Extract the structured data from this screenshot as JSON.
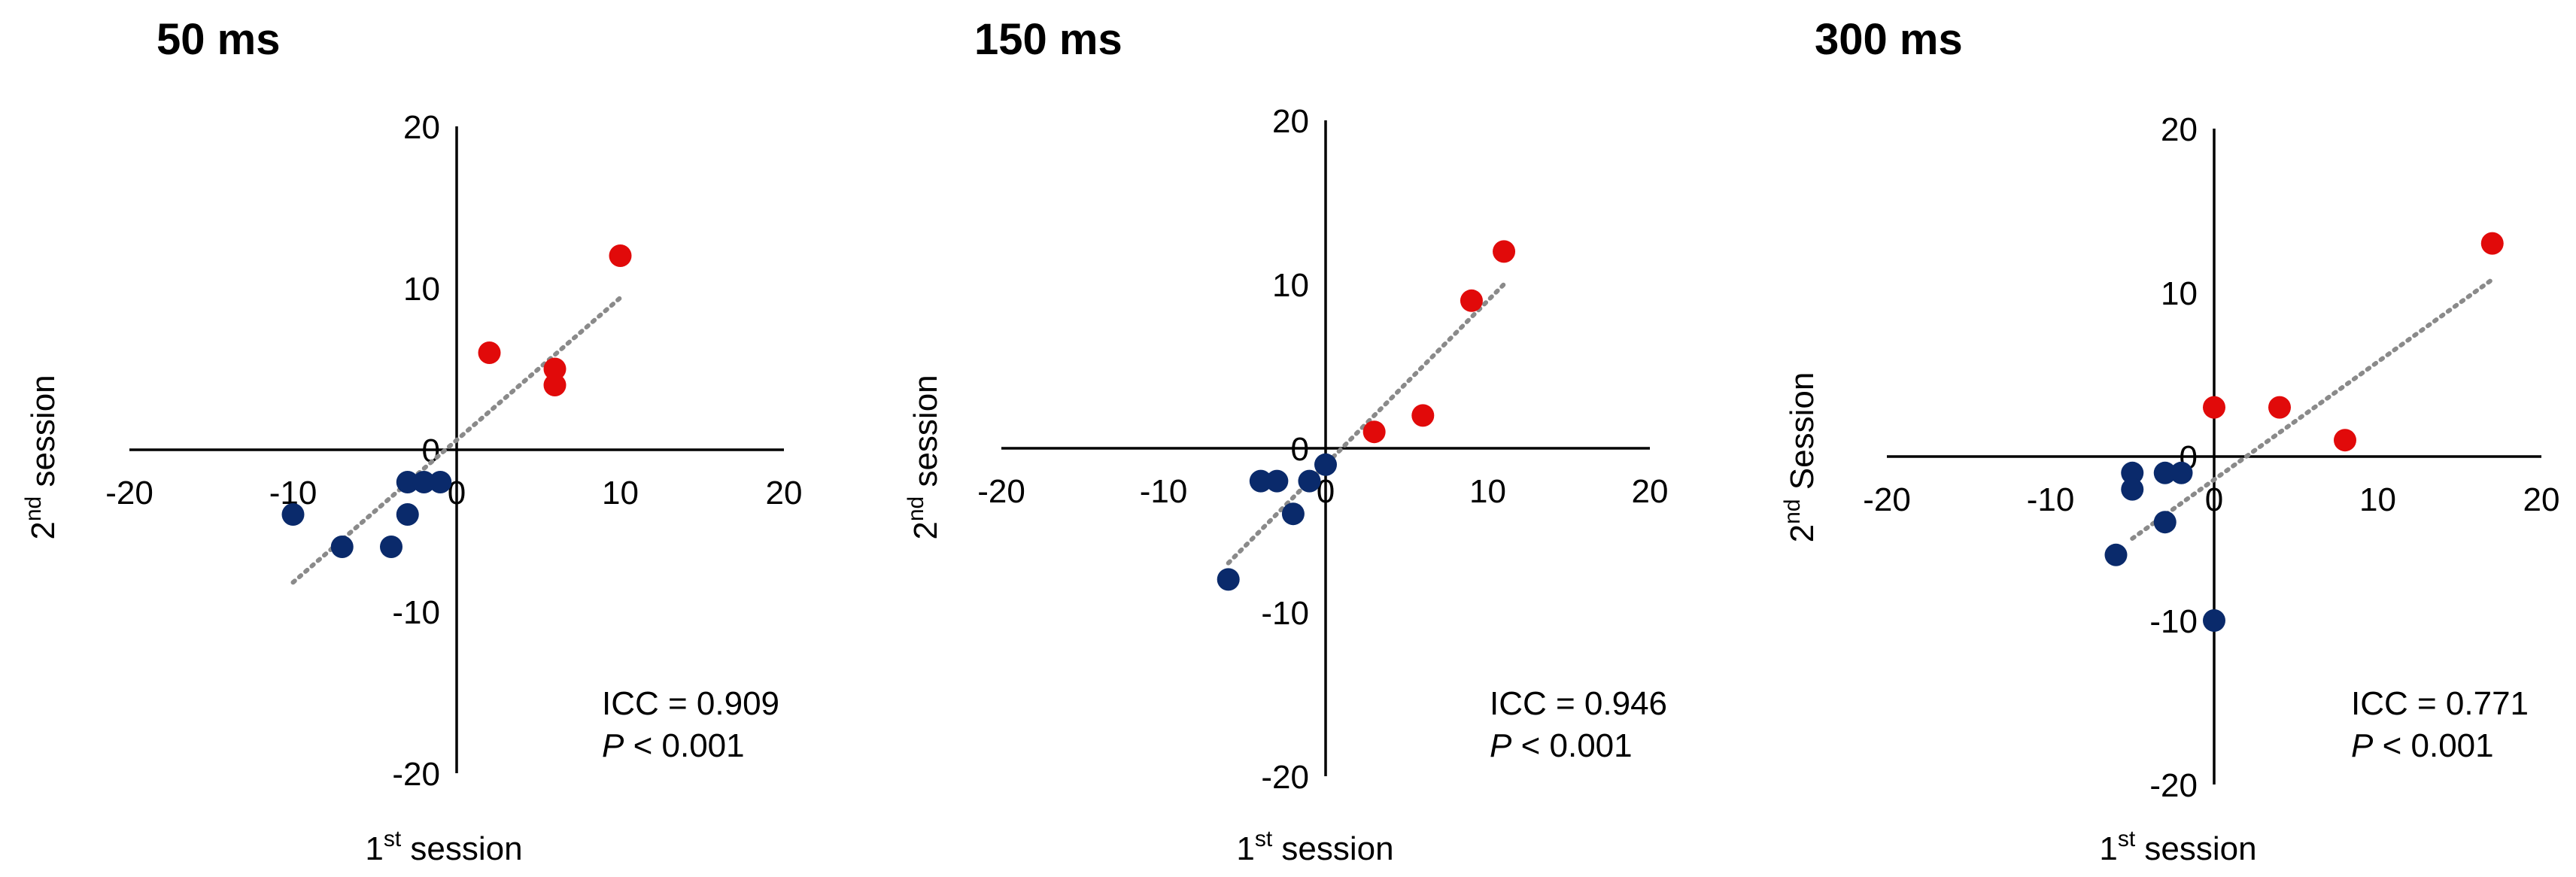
{
  "chart_data": [
    {
      "type": "scatter",
      "title": "50 ms",
      "xlabel": {
        "prefix": "1",
        "sup": "st",
        "rest": " session"
      },
      "ylabel": {
        "prefix": "2",
        "sup": "nd",
        "rest": " session"
      },
      "xlim": [
        -20,
        20
      ],
      "ylim": [
        -20,
        20
      ],
      "ticks": [
        -20,
        -10,
        0,
        10,
        20
      ],
      "grid": false,
      "annotation": {
        "icc": "ICC = 0.909",
        "p_italic": "P",
        "p_rest": " < 0.001"
      },
      "trendline": [
        [
          -10,
          -8.2
        ],
        [
          10,
          9.4
        ]
      ],
      "series": [
        {
          "color": "#e10a0a",
          "points": [
            [
              2,
              6
            ],
            [
              6,
              5
            ],
            [
              6,
              4
            ],
            [
              10,
              12
            ]
          ]
        },
        {
          "color": "#0a2a6b",
          "points": [
            [
              -10,
              -4
            ],
            [
              -7,
              -6
            ],
            [
              -4,
              -6
            ],
            [
              -3,
              -2
            ],
            [
              -3,
              -4
            ],
            [
              -2,
              -2
            ],
            [
              -1,
              -2
            ]
          ]
        }
      ]
    },
    {
      "type": "scatter",
      "title": "150 ms",
      "xlabel": {
        "prefix": "1",
        "sup": "st",
        "rest": " session"
      },
      "ylabel": {
        "prefix": "2",
        "sup": "nd",
        "rest": " session"
      },
      "xlim": [
        -20,
        20
      ],
      "ylim": [
        -20,
        20
      ],
      "ticks": [
        -20,
        -10,
        0,
        10,
        20
      ],
      "grid": false,
      "annotation": {
        "icc": "ICC = 0.946",
        "p_italic": "P",
        "p_rest": " < 0.001"
      },
      "trendline": [
        [
          -6,
          -7
        ],
        [
          11,
          10
        ]
      ],
      "series": [
        {
          "color": "#e10a0a",
          "points": [
            [
              3,
              1
            ],
            [
              6,
              2
            ],
            [
              9,
              9
            ],
            [
              11,
              12
            ]
          ]
        },
        {
          "color": "#0a2a6b",
          "points": [
            [
              -6,
              -8
            ],
            [
              -4,
              -2
            ],
            [
              -3,
              -2
            ],
            [
              -2,
              -4
            ],
            [
              -1,
              -2
            ],
            [
              0,
              -1
            ]
          ]
        }
      ]
    },
    {
      "type": "scatter",
      "title": "300 ms",
      "xlabel": {
        "prefix": "1",
        "sup": "st",
        "rest": " session"
      },
      "ylabel": {
        "prefix": "2",
        "sup": "nd",
        "rest": " Session"
      },
      "xlim": [
        -20,
        20
      ],
      "ylim": [
        -20,
        20
      ],
      "ticks": [
        -20,
        -10,
        0,
        10,
        20
      ],
      "grid": false,
      "annotation": {
        "icc": "ICC = 0.771",
        "p_italic": "P",
        "p_rest": " < 0.001"
      },
      "trendline": [
        [
          -5,
          -5
        ],
        [
          17,
          10.8
        ]
      ],
      "series": [
        {
          "color": "#e10a0a",
          "points": [
            [
              0,
              3
            ],
            [
              4,
              3
            ],
            [
              8,
              1
            ],
            [
              17,
              13
            ]
          ]
        },
        {
          "color": "#0a2a6b",
          "points": [
            [
              -6,
              -6
            ],
            [
              -5,
              -1
            ],
            [
              -5,
              -2
            ],
            [
              -3,
              -1
            ],
            [
              -2,
              -1
            ],
            [
              -3,
              -4
            ],
            [
              0,
              -10
            ]
          ]
        }
      ]
    }
  ]
}
